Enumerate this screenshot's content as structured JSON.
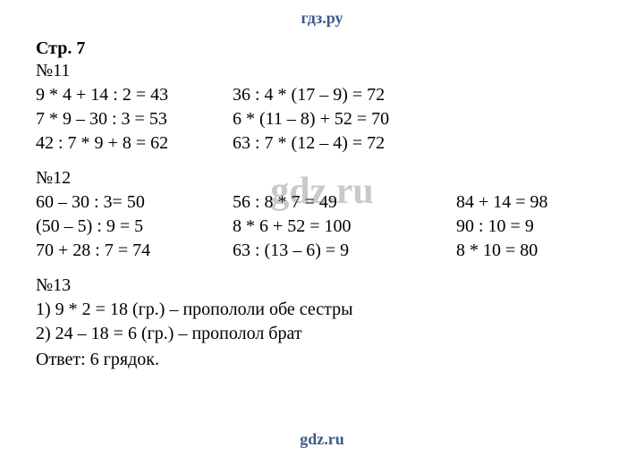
{
  "brand": {
    "header": "гдз.ру",
    "watermark": "gdz.ru",
    "footer": "gdz.ru"
  },
  "page": {
    "label": "Стр. 7"
  },
  "problem11": {
    "label": "№11",
    "rows": [
      {
        "a": "9 * 4 + 14 : 2 = 43",
        "b": "36 : 4 * (17 – 9) = 72"
      },
      {
        "a": "7 * 9 – 30 : 3 = 53",
        "b": "6 * (11 – 8) + 52 = 70"
      },
      {
        "a": "42 : 7 * 9 + 8 = 62",
        "b": "63 : 7 * (12 – 4) = 72"
      }
    ]
  },
  "problem12": {
    "label": "№12",
    "rows": [
      {
        "a": "60 – 30 : 3= 50",
        "b": "56 : 8 * 7 = 49",
        "c": "84 + 14 = 98"
      },
      {
        "a": "(50 – 5) : 9 = 5",
        "b": "8 * 6 + 52 = 100",
        "c": "90 : 10 = 9"
      },
      {
        "a": "70 + 28 : 7 = 74",
        "b": "63 : (13 – 6) = 9",
        "c": "8 * 10 = 80"
      }
    ]
  },
  "problem13": {
    "label": "№13",
    "lines": [
      "1) 9 * 2 = 18 (гр.) – пропололи обе сестры",
      "2) 24 – 18 = 6 (гр.) – прополол брат"
    ],
    "answer": "Ответ: 6 грядок."
  }
}
